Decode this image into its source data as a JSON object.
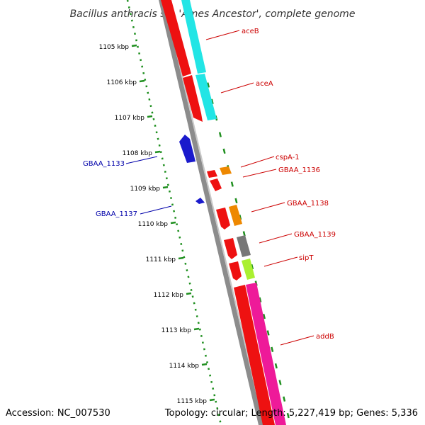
{
  "title": "Bacillus anthracis str. 'Ames Ancestor', complete genome",
  "footer": {
    "accession": "Accession: NC_007530",
    "topology": "Topology: circular; Length: 5,227,419 bp; Genes: 5,336"
  },
  "ruler": {
    "unit": "kbp",
    "ticks": [
      "1105 kbp",
      "1106 kbp",
      "1107 kbp",
      "1108 kbp",
      "1109 kbp",
      "1110 kbp",
      "1111 kbp",
      "1112 kbp",
      "1113 kbp",
      "1114 kbp",
      "1115 kbp"
    ]
  },
  "colors": {
    "backbone": "#8c8c8c",
    "ruler": "#1f8f1f",
    "forward_label": "#cc0000",
    "reverse_label": "#0000aa",
    "red": "#ee1111",
    "cyan": "#22e5e5",
    "blue": "#1a1acc",
    "orange": "#ee8800",
    "gray": "#777777",
    "lime": "#aaf030",
    "pink": "#ee1a99"
  },
  "genes": [
    {
      "label": "aceB",
      "strand": "forward",
      "color": "red"
    },
    {
      "label": "aceA",
      "strand": "forward",
      "color": "red"
    },
    {
      "label": "cspA-1",
      "strand": "forward",
      "color": "red"
    },
    {
      "label": "GBAA_1136",
      "strand": "forward",
      "color": "red"
    },
    {
      "label": "GBAA_1138",
      "strand": "forward",
      "color": "red"
    },
    {
      "label": "GBAA_1139",
      "strand": "forward",
      "color": "red"
    },
    {
      "label": "sipT",
      "strand": "forward",
      "color": "red"
    },
    {
      "label": "addB",
      "strand": "forward",
      "color": "red"
    },
    {
      "label": "GBAA_1133",
      "strand": "reverse",
      "color": "blue"
    },
    {
      "label": "GBAA_1137",
      "strand": "reverse",
      "color": "blue"
    }
  ]
}
